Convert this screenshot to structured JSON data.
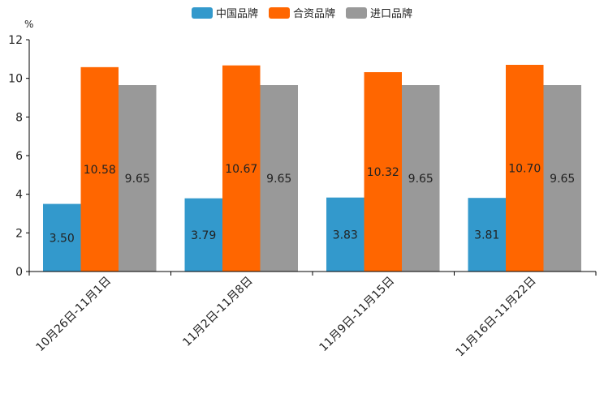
{
  "chart_data": {
    "type": "bar",
    "unit_label": "%",
    "categories": [
      "10月26日-11月1日",
      "11月2日-11月8日",
      "11月9日-11月15日",
      "11月16日-11月22日"
    ],
    "series": [
      {
        "name": "中国品牌",
        "color": "#3399cc",
        "values": [
          3.5,
          3.79,
          3.83,
          3.81
        ],
        "labels": [
          "3.50",
          "3.79",
          "3.83",
          "3.81"
        ]
      },
      {
        "name": "合资品牌",
        "color": "#ff6600",
        "values": [
          10.58,
          10.67,
          10.32,
          10.7
        ],
        "labels": [
          "10.58",
          "10.67",
          "10.32",
          "10.70"
        ]
      },
      {
        "name": "进口品牌",
        "color": "#999999",
        "values": [
          9.65,
          9.65,
          9.65,
          9.65
        ],
        "labels": [
          "9.65",
          "9.65",
          "9.65",
          "9.65"
        ]
      }
    ],
    "ylim": [
      0,
      12
    ],
    "yticks": [
      0,
      2,
      4,
      6,
      8,
      10,
      12
    ],
    "legend_position": "top-center",
    "grid": false
  }
}
